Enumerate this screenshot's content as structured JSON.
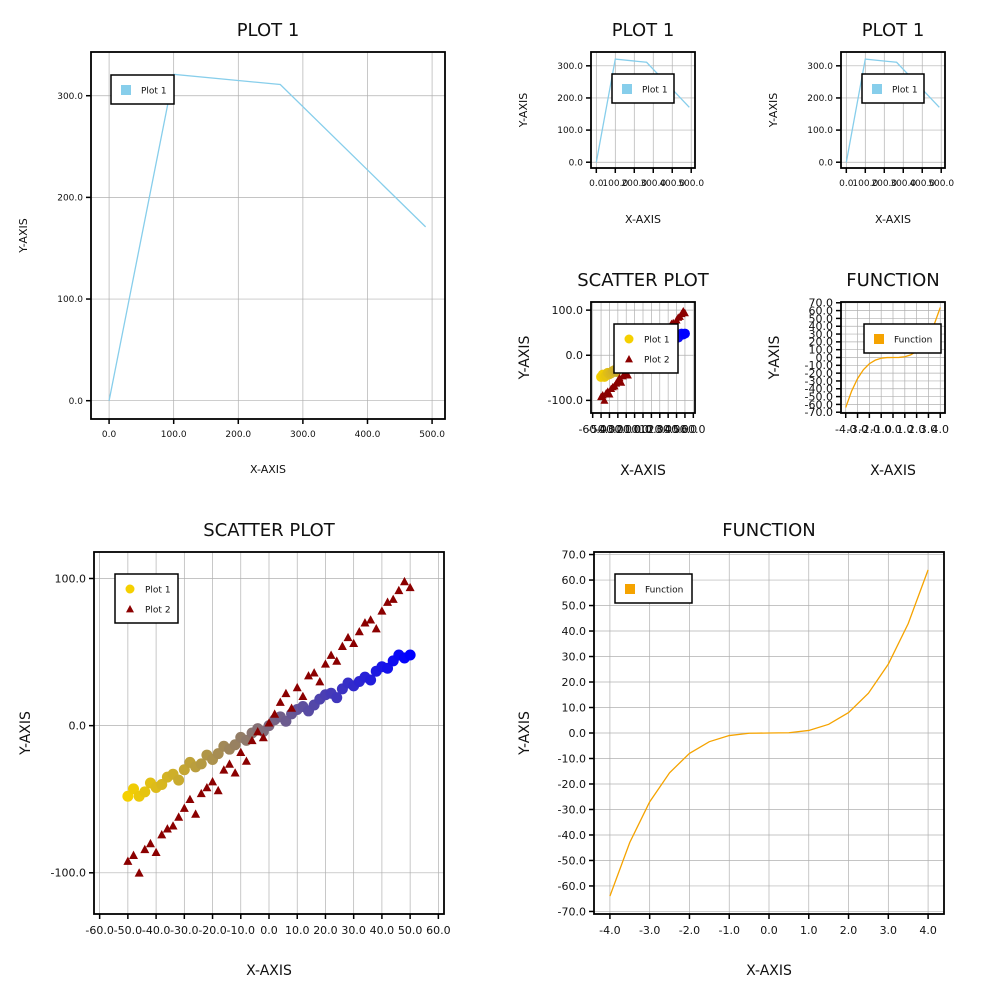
{
  "chart_data": [
    {
      "id": "p1_large",
      "type": "line",
      "title": "PLOT 1",
      "xlabel": "X-AXIS",
      "ylabel": "Y-AXIS",
      "xlim": [
        -28,
        520
      ],
      "ylim": [
        -18,
        343
      ],
      "xticks": [
        0,
        100,
        200,
        300,
        400,
        500
      ],
      "yticks": [
        0,
        100,
        200,
        300
      ],
      "xtick_labels": [
        "0.0",
        "100.0",
        "200.0",
        "300.0",
        "400.0",
        "500.0"
      ],
      "ytick_labels": [
        "0.0",
        "100.0",
        "200.0",
        "300.0"
      ],
      "grid": true,
      "legend_position": "upper-left",
      "series": [
        {
          "name": "Plot 1",
          "color": "#87ceeb",
          "marker": "square",
          "x": [
            0,
            100,
            265,
            490
          ],
          "y": [
            0,
            321,
            311,
            171
          ]
        }
      ]
    },
    {
      "id": "p1_small_a",
      "type": "line",
      "title": "PLOT 1",
      "xlabel": "X-AXIS",
      "ylabel": "Y-AXIS",
      "xlim": [
        -28,
        520
      ],
      "ylim": [
        -18,
        343
      ],
      "xticks": [
        0,
        100,
        200,
        300,
        400,
        500
      ],
      "yticks": [
        0,
        100,
        200,
        300
      ],
      "xtick_labels": [
        "0.0",
        "100.0",
        "200.0",
        "300.0",
        "400.0",
        "500.0"
      ],
      "ytick_labels": [
        "0.0",
        "100.0",
        "200.0",
        "300.0"
      ],
      "grid": true,
      "legend_position": "center",
      "series": [
        {
          "name": "Plot 1",
          "color": "#87ceeb",
          "marker": "square",
          "x": [
            0,
            100,
            265,
            490
          ],
          "y": [
            0,
            321,
            311,
            171
          ]
        }
      ]
    },
    {
      "id": "p1_small_b",
      "type": "line",
      "title": "PLOT 1",
      "xlabel": "X-AXIS",
      "ylabel": "Y-AXIS",
      "xlim": [
        -28,
        520
      ],
      "ylim": [
        -18,
        343
      ],
      "xticks": [
        0,
        100,
        200,
        300,
        400,
        500
      ],
      "yticks": [
        0,
        100,
        200,
        300
      ],
      "xtick_labels": [
        "0.0",
        "100.0",
        "200.0",
        "300.0",
        "400.0",
        "500.0"
      ],
      "ytick_labels": [
        "0.0",
        "100.0",
        "200.0",
        "300.0"
      ],
      "grid": true,
      "legend_position": "center",
      "series": [
        {
          "name": "Plot 1",
          "color": "#87ceeb",
          "marker": "square",
          "x": [
            0,
            100,
            265,
            490
          ],
          "y": [
            0,
            321,
            311,
            171
          ]
        }
      ]
    },
    {
      "id": "scatter_small",
      "type": "scatter",
      "title": "SCATTER PLOT",
      "xlabel": "X-AXIS",
      "ylabel": "Y-AXIS",
      "xlim": [
        -62,
        62
      ],
      "ylim": [
        -128,
        118
      ],
      "xticks": [
        -60,
        -50,
        -40,
        -30,
        -20,
        -10,
        0,
        10,
        20,
        30,
        40,
        50,
        60
      ],
      "yticks": [
        -100,
        0,
        100
      ],
      "xtick_labels": [
        "-60.0",
        "-50.0",
        "-40.0",
        "-30.0",
        "-20.0",
        "-10.0",
        "0.0",
        "10.0",
        "20.0",
        "30.0",
        "40.0",
        "50.0",
        "60.0"
      ],
      "ytick_labels": [
        "-100.0",
        "0.0",
        "100.0"
      ],
      "grid": true,
      "legend_position": "center",
      "series": [
        {
          "name": "Plot 1",
          "color_start": "#f5d000",
          "color_end": "#0000ff",
          "marker": "circle",
          "x": [
            -50,
            -48,
            -46,
            -44,
            -42,
            -40,
            -38,
            -36,
            -34,
            -32,
            -30,
            -28,
            -26,
            -24,
            -22,
            -20,
            -18,
            -16,
            -14,
            -12,
            -10,
            -8,
            -6,
            -4,
            -2,
            0,
            2,
            4,
            6,
            8,
            10,
            12,
            14,
            16,
            18,
            20,
            22,
            24,
            26,
            28,
            30,
            32,
            34,
            36,
            38,
            40,
            42,
            44,
            46,
            48,
            50
          ],
          "y": [
            -48,
            -43,
            -48,
            -45,
            -39,
            -42,
            -40,
            -35,
            -33,
            -37,
            -30,
            -25,
            -28,
            -26,
            -20,
            -23,
            -19,
            -14,
            -16,
            -13,
            -8,
            -10,
            -5,
            -2,
            -4,
            0,
            4,
            6,
            3,
            8,
            11,
            13,
            10,
            14,
            18,
            21,
            22,
            19,
            25,
            29,
            27,
            30,
            33,
            31,
            37,
            40,
            39,
            44,
            48,
            46,
            48
          ]
        },
        {
          "name": "Plot 2",
          "color": "#8b0000",
          "marker": "triangle",
          "x": [
            -50,
            -48,
            -46,
            -44,
            -42,
            -40,
            -38,
            -36,
            -34,
            -32,
            -30,
            -28,
            -26,
            -24,
            -22,
            -20,
            -18,
            -16,
            -14,
            -12,
            -10,
            -8,
            -6,
            -4,
            -2,
            0,
            2,
            4,
            6,
            8,
            10,
            12,
            14,
            16,
            18,
            20,
            22,
            24,
            26,
            28,
            30,
            32,
            34,
            36,
            38,
            40,
            42,
            44,
            46,
            48,
            50
          ],
          "y": [
            -92,
            -88,
            -100,
            -84,
            -80,
            -86,
            -74,
            -70,
            -68,
            -62,
            -56,
            -50,
            -60,
            -46,
            -42,
            -38,
            -44,
            -30,
            -26,
            -32,
            -18,
            -24,
            -10,
            -4,
            -8,
            2,
            8,
            16,
            22,
            12,
            26,
            20,
            34,
            36,
            30,
            42,
            48,
            44,
            54,
            60,
            56,
            64,
            70,
            72,
            66,
            78,
            84,
            86,
            92,
            98,
            94
          ]
        }
      ]
    },
    {
      "id": "function_small",
      "type": "line",
      "title": "FUNCTION",
      "xlabel": "X-AXIS",
      "ylabel": "Y-AXIS",
      "xlim": [
        -4.4,
        4.4
      ],
      "ylim": [
        -71,
        71
      ],
      "xticks": [
        -4,
        -3,
        -2,
        -1,
        0,
        1,
        2,
        3,
        4
      ],
      "yticks": [
        -70,
        -60,
        -50,
        -40,
        -30,
        -20,
        -10,
        0,
        10,
        20,
        30,
        40,
        50,
        60,
        70
      ],
      "xtick_labels": [
        "-4.0",
        "-3.0",
        "-2.0",
        "-1.0",
        "0.0",
        "1.0",
        "2.0",
        "3.0",
        "4.0"
      ],
      "ytick_labels": [
        "-70.0",
        "-60.0",
        "-50.0",
        "-40.0",
        "-30.0",
        "-20.0",
        "-10.0",
        "0.0",
        "10.0",
        "20.0",
        "30.0",
        "40.0",
        "50.0",
        "60.0",
        "70.0"
      ],
      "grid": true,
      "legend_position": "center-right",
      "series": [
        {
          "name": "Function",
          "color": "#f5a300",
          "marker": "square",
          "x": [
            -4,
            -3.5,
            -3,
            -2.5,
            -2,
            -1.5,
            -1,
            -0.5,
            0,
            0.5,
            1,
            1.5,
            2,
            2.5,
            3,
            3.5,
            4
          ],
          "y": [
            -64,
            -42.9,
            -27,
            -15.6,
            -8,
            -3.4,
            -1,
            -0.1,
            0,
            0.1,
            1,
            3.4,
            8,
            15.6,
            27,
            42.9,
            64
          ]
        }
      ]
    },
    {
      "id": "scatter_large",
      "type": "scatter",
      "title": "SCATTER PLOT",
      "xlabel": "X-AXIS",
      "ylabel": "Y-AXIS",
      "xlim": [
        -62,
        62
      ],
      "ylim": [
        -128,
        118
      ],
      "xticks": [
        -60,
        -50,
        -40,
        -30,
        -20,
        -10,
        0,
        10,
        20,
        30,
        40,
        50,
        60
      ],
      "yticks": [
        -100,
        0,
        100
      ],
      "xtick_labels": [
        "-60.0",
        "-50.0",
        "-40.0",
        "-30.0",
        "-20.0",
        "-10.0",
        "0.0",
        "10.0",
        "20.0",
        "30.0",
        "40.0",
        "50.0",
        "60.0"
      ],
      "ytick_labels": [
        "-100.0",
        "0.0",
        "100.0"
      ],
      "grid": true,
      "legend_position": "upper-left",
      "series": [
        {
          "name": "Plot 1",
          "color_start": "#f5d000",
          "color_end": "#0000ff",
          "marker": "circle",
          "x": [
            -50,
            -48,
            -46,
            -44,
            -42,
            -40,
            -38,
            -36,
            -34,
            -32,
            -30,
            -28,
            -26,
            -24,
            -22,
            -20,
            -18,
            -16,
            -14,
            -12,
            -10,
            -8,
            -6,
            -4,
            -2,
            0,
            2,
            4,
            6,
            8,
            10,
            12,
            14,
            16,
            18,
            20,
            22,
            24,
            26,
            28,
            30,
            32,
            34,
            36,
            38,
            40,
            42,
            44,
            46,
            48,
            50
          ],
          "y": [
            -48,
            -43,
            -48,
            -45,
            -39,
            -42,
            -40,
            -35,
            -33,
            -37,
            -30,
            -25,
            -28,
            -26,
            -20,
            -23,
            -19,
            -14,
            -16,
            -13,
            -8,
            -10,
            -5,
            -2,
            -4,
            0,
            4,
            6,
            3,
            8,
            11,
            13,
            10,
            14,
            18,
            21,
            22,
            19,
            25,
            29,
            27,
            30,
            33,
            31,
            37,
            40,
            39,
            44,
            48,
            46,
            48
          ]
        },
        {
          "name": "Plot 2",
          "color": "#8b0000",
          "marker": "triangle",
          "x": [
            -50,
            -48,
            -46,
            -44,
            -42,
            -40,
            -38,
            -36,
            -34,
            -32,
            -30,
            -28,
            -26,
            -24,
            -22,
            -20,
            -18,
            -16,
            -14,
            -12,
            -10,
            -8,
            -6,
            -4,
            -2,
            0,
            2,
            4,
            6,
            8,
            10,
            12,
            14,
            16,
            18,
            20,
            22,
            24,
            26,
            28,
            30,
            32,
            34,
            36,
            38,
            40,
            42,
            44,
            46,
            48,
            50
          ],
          "y": [
            -92,
            -88,
            -100,
            -84,
            -80,
            -86,
            -74,
            -70,
            -68,
            -62,
            -56,
            -50,
            -60,
            -46,
            -42,
            -38,
            -44,
            -30,
            -26,
            -32,
            -18,
            -24,
            -10,
            -4,
            -8,
            2,
            8,
            16,
            22,
            12,
            26,
            20,
            34,
            36,
            30,
            42,
            48,
            44,
            54,
            60,
            56,
            64,
            70,
            72,
            66,
            78,
            84,
            86,
            92,
            98,
            94
          ]
        }
      ]
    },
    {
      "id": "function_large",
      "type": "line",
      "title": "FUNCTION",
      "xlabel": "X-AXIS",
      "ylabel": "Y-AXIS",
      "xlim": [
        -4.4,
        4.4
      ],
      "ylim": [
        -71,
        71
      ],
      "xticks": [
        -4,
        -3,
        -2,
        -1,
        0,
        1,
        2,
        3,
        4
      ],
      "yticks": [
        -70,
        -60,
        -50,
        -40,
        -30,
        -20,
        -10,
        0,
        10,
        20,
        30,
        40,
        50,
        60,
        70
      ],
      "xtick_labels": [
        "-4.0",
        "-3.0",
        "-2.0",
        "-1.0",
        "0.0",
        "1.0",
        "2.0",
        "3.0",
        "4.0"
      ],
      "ytick_labels": [
        "-70.0",
        "-60.0",
        "-50.0",
        "-40.0",
        "-30.0",
        "-20.0",
        "-10.0",
        "0.0",
        "10.0",
        "20.0",
        "30.0",
        "40.0",
        "50.0",
        "60.0",
        "70.0"
      ],
      "grid": true,
      "legend_position": "upper-left",
      "series": [
        {
          "name": "Function",
          "color": "#f5a300",
          "marker": "square",
          "x": [
            -4,
            -3.5,
            -3,
            -2.5,
            -2,
            -1.5,
            -1,
            -0.5,
            0,
            0.5,
            1,
            1.5,
            2,
            2.5,
            3,
            3.5,
            4
          ],
          "y": [
            -64,
            -42.9,
            -27,
            -15.6,
            -8,
            -3.4,
            -1,
            -0.1,
            0,
            0.1,
            1,
            3.4,
            8,
            15.6,
            27,
            42.9,
            64
          ]
        }
      ]
    }
  ]
}
